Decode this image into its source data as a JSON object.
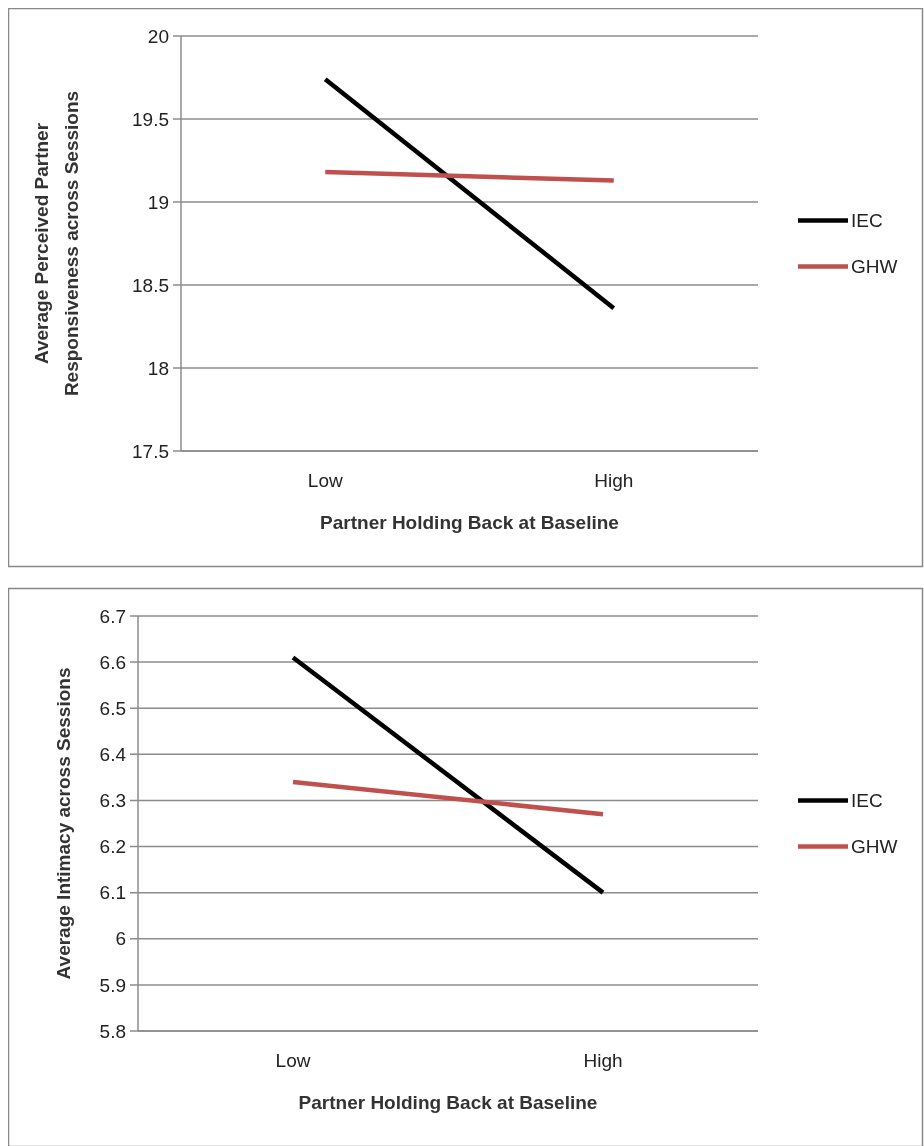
{
  "chart_data": [
    {
      "type": "line",
      "xlabel": "Partner Holding Back at Baseline",
      "ylabel": "Average Perceived Partner Responsiveness across Sessions",
      "categories": [
        "Low",
        "High"
      ],
      "series": [
        {
          "name": "IEC",
          "color": "#000000",
          "values": [
            19.74,
            18.36
          ]
        },
        {
          "name": "GHW",
          "color": "#c0504d",
          "values": [
            19.18,
            19.13
          ]
        }
      ],
      "ylim": [
        17.5,
        20
      ],
      "yticks": [
        17.5,
        18,
        18.5,
        19,
        19.5,
        20
      ],
      "grid": "y",
      "legend": "right"
    },
    {
      "type": "line",
      "xlabel": "Partner Holding Back at Baseline",
      "ylabel": "Average Intimacy  across Sessions",
      "categories": [
        "Low",
        "High"
      ],
      "series": [
        {
          "name": "IEC",
          "color": "#000000",
          "values": [
            6.61,
            6.1
          ]
        },
        {
          "name": "GHW",
          "color": "#c0504d",
          "values": [
            6.34,
            6.27
          ]
        }
      ],
      "ylim": [
        5.8,
        6.7
      ],
      "yticks": [
        5.8,
        5.9,
        6,
        6.1,
        6.2,
        6.3,
        6.4,
        6.5,
        6.6,
        6.7
      ],
      "grid": "y",
      "legend": "right"
    }
  ]
}
